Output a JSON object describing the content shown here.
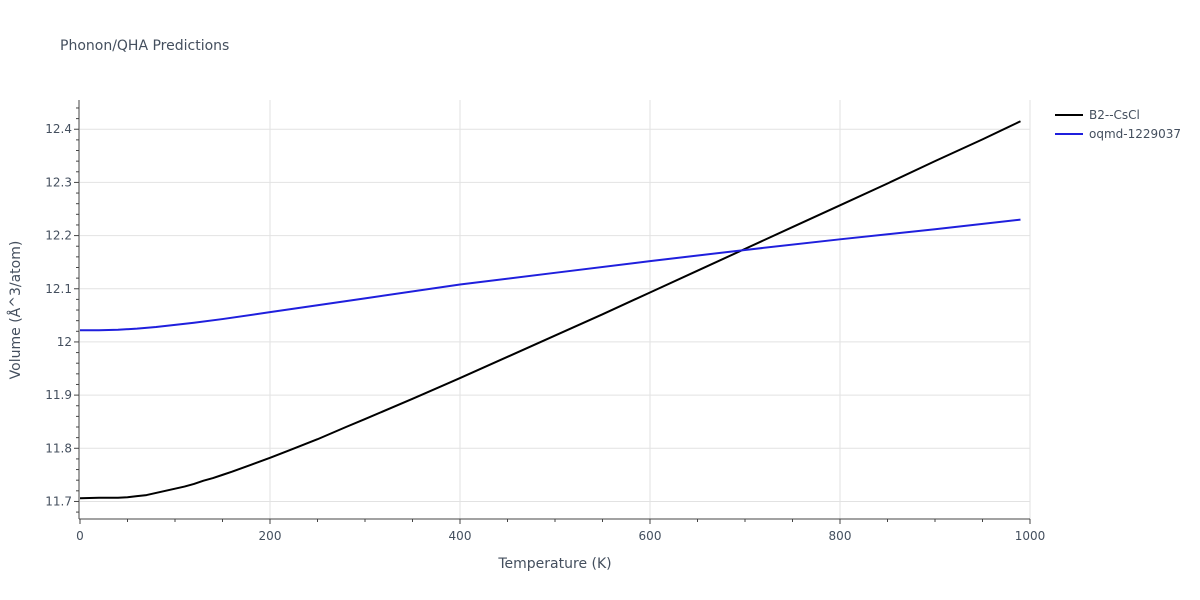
{
  "chart_data": {
    "type": "line",
    "title": "Phonon/QHA Predictions",
    "xlabel": "Temperature (K)",
    "ylabel": "Volume (Å^3/atom)",
    "xlim": [
      0,
      1000
    ],
    "ylim": [
      11.667,
      12.455
    ],
    "x_ticks": [
      0,
      200,
      400,
      600,
      800,
      1000
    ],
    "x_tick_labels": [
      "0",
      "200",
      "400",
      "600",
      "800",
      "1000"
    ],
    "y_ticks": [
      11.7,
      11.8,
      11.9,
      12.0,
      12.1,
      12.2,
      12.3,
      12.4
    ],
    "y_tick_labels": [
      "11.7",
      "11.8",
      "11.9",
      "12",
      "12.1",
      "12.2",
      "12.3",
      "12.4"
    ],
    "grid": true,
    "legend_position": "top-right",
    "series": [
      {
        "name": "B2--CsCl",
        "color": "#000000",
        "x": [
          0,
          20,
          40,
          50,
          60,
          70,
          80,
          90,
          100,
          110,
          120,
          130,
          140,
          150,
          160,
          180,
          200,
          220,
          250,
          280,
          300,
          350,
          400,
          450,
          500,
          550,
          600,
          650,
          700,
          750,
          800,
          850,
          900,
          950,
          990
        ],
        "y": [
          11.706,
          11.707,
          11.707,
          11.708,
          11.71,
          11.712,
          11.716,
          11.72,
          11.724,
          11.728,
          11.733,
          11.739,
          11.744,
          11.75,
          11.756,
          11.769,
          11.782,
          11.796,
          11.817,
          11.84,
          11.855,
          11.893,
          11.932,
          11.972,
          12.012,
          12.052,
          12.093,
          12.134,
          12.175,
          12.216,
          12.257,
          12.298,
          12.34,
          12.381,
          12.415
        ]
      },
      {
        "name": "oqmd-1229037",
        "color": "#1f1fdd",
        "x": [
          0,
          20,
          40,
          60,
          80,
          100,
          120,
          150,
          200,
          250,
          300,
          400,
          500,
          600,
          700,
          800,
          900,
          990
        ],
        "y": [
          12.022,
          12.022,
          12.023,
          12.025,
          12.028,
          12.032,
          12.036,
          12.043,
          12.056,
          12.069,
          12.082,
          12.108,
          12.13,
          12.152,
          12.173,
          12.193,
          12.212,
          12.23
        ]
      }
    ]
  }
}
